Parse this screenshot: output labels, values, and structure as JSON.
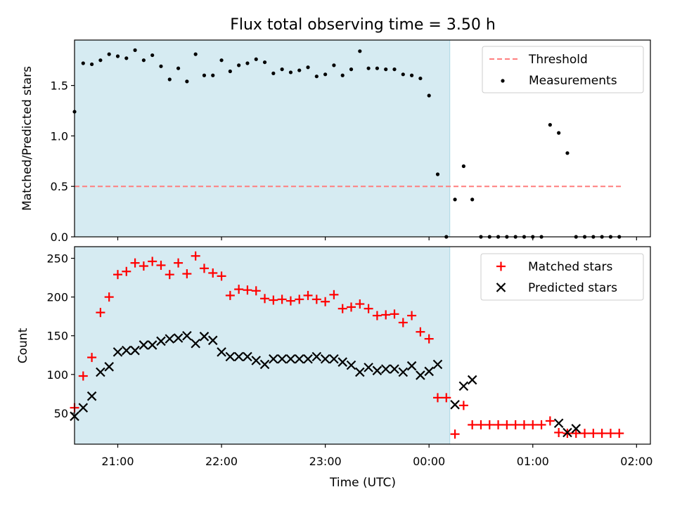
{
  "title": "Flux total observing time = 3.50 h",
  "colors": {
    "shade": "#add8e6",
    "threshold": "#ff7f7f",
    "measurement": "#000000",
    "matched": "#ff0000",
    "predicted": "#000000"
  },
  "chart_data": [
    {
      "type": "scatter",
      "ylabel": "Matched/Predicted stars",
      "xlim": [
        "20:35",
        "02:08"
      ],
      "ylim": [
        0,
        1.95
      ],
      "yticks": [
        0.0,
        0.5,
        1.0,
        1.5
      ],
      "ytick_labels": [
        "0.0",
        "0.5",
        "1.0",
        "1.5"
      ],
      "shaded_span": [
        "20:35",
        "00:12"
      ],
      "threshold": {
        "y": 0.5,
        "x": [
          "20:35",
          "01:52"
        ]
      },
      "legend": {
        "position": "top-right",
        "entries": [
          "Threshold",
          "Measurements"
        ]
      },
      "series": [
        {
          "name": "Measurements",
          "x": [
            "20:35",
            "20:40",
            "20:45",
            "20:50",
            "20:55",
            "21:00",
            "21:05",
            "21:10",
            "21:15",
            "21:20",
            "21:25",
            "21:30",
            "21:35",
            "21:40",
            "21:45",
            "21:50",
            "21:55",
            "22:00",
            "22:05",
            "22:10",
            "22:15",
            "22:20",
            "22:25",
            "22:30",
            "22:35",
            "22:40",
            "22:45",
            "22:50",
            "22:55",
            "23:00",
            "23:05",
            "23:10",
            "23:15",
            "23:20",
            "23:25",
            "23:30",
            "23:35",
            "23:40",
            "23:45",
            "23:50",
            "23:55",
            "00:00",
            "00:05",
            "00:10",
            "00:15",
            "00:20",
            "00:25",
            "00:30",
            "00:35",
            "00:40",
            "00:45",
            "00:50",
            "00:55",
            "01:00",
            "01:05",
            "01:10",
            "01:15",
            "01:20",
            "01:25",
            "01:30",
            "01:35",
            "01:40",
            "01:45",
            "01:50"
          ],
          "y": [
            1.24,
            1.72,
            1.71,
            1.75,
            1.81,
            1.79,
            1.77,
            1.85,
            1.75,
            1.8,
            1.69,
            1.56,
            1.67,
            1.54,
            1.81,
            1.6,
            1.6,
            1.75,
            1.64,
            1.7,
            1.72,
            1.76,
            1.73,
            1.62,
            1.66,
            1.63,
            1.65,
            1.68,
            1.59,
            1.61,
            1.7,
            1.6,
            1.66,
            1.84,
            1.67,
            1.67,
            1.66,
            1.66,
            1.61,
            1.6,
            1.57,
            1.4,
            0.62,
            0.0,
            0.37,
            0.7,
            0.37,
            0.0,
            0.0,
            0.0,
            0.0,
            0.0,
            0.0,
            0.0,
            0.0,
            1.11,
            1.03,
            0.83,
            0.0,
            0.0,
            0.0,
            0.0,
            0.0,
            0.0
          ]
        }
      ]
    },
    {
      "type": "scatter",
      "ylabel": "Count",
      "xlabel": "Time (UTC)",
      "xlim": [
        "20:35",
        "02:08"
      ],
      "ylim": [
        10,
        265
      ],
      "yticks": [
        50,
        100,
        150,
        200,
        250
      ],
      "ytick_labels": [
        "50",
        "100",
        "150",
        "200",
        "250"
      ],
      "xticks": [
        "21:00",
        "22:00",
        "23:00",
        "00:00",
        "01:00",
        "02:00"
      ],
      "shaded_span": [
        "20:35",
        "00:12"
      ],
      "legend": {
        "position": "top-right",
        "entries": [
          "Matched stars",
          "Predicted stars"
        ]
      },
      "series": [
        {
          "name": "Matched stars",
          "marker": "plus",
          "x": [
            "20:35",
            "20:40",
            "20:45",
            "20:50",
            "20:55",
            "21:00",
            "21:05",
            "21:10",
            "21:15",
            "21:20",
            "21:25",
            "21:30",
            "21:35",
            "21:40",
            "21:45",
            "21:50",
            "21:55",
            "22:00",
            "22:05",
            "22:10",
            "22:15",
            "22:20",
            "22:25",
            "22:30",
            "22:35",
            "22:40",
            "22:45",
            "22:50",
            "22:55",
            "23:00",
            "23:05",
            "23:10",
            "23:15",
            "23:20",
            "23:25",
            "23:30",
            "23:35",
            "23:40",
            "23:45",
            "23:50",
            "23:55",
            "00:00",
            "00:05",
            "00:10",
            "00:15",
            "00:20",
            "00:25",
            "00:30",
            "00:35",
            "00:40",
            "00:45",
            "00:50",
            "00:55",
            "01:00",
            "01:05",
            "01:10",
            "01:15",
            "01:20",
            "01:25",
            "01:30",
            "01:35",
            "01:40",
            "01:45",
            "01:50"
          ],
          "y": [
            57,
            98,
            122,
            180,
            200,
            229,
            233,
            244,
            240,
            246,
            241,
            229,
            244,
            230,
            253,
            237,
            231,
            227,
            202,
            210,
            209,
            208,
            198,
            196,
            197,
            195,
            197,
            202,
            197,
            194,
            203,
            185,
            187,
            191,
            185,
            176,
            177,
            178,
            167,
            176,
            155,
            146,
            70,
            70,
            23,
            60,
            35,
            35,
            35,
            35,
            35,
            35,
            35,
            35,
            35,
            40,
            25,
            24,
            24,
            24,
            24,
            24,
            24,
            24
          ]
        },
        {
          "name": "Predicted stars",
          "marker": "x",
          "x": [
            "20:35",
            "20:40",
            "20:45",
            "20:50",
            "20:55",
            "21:00",
            "21:05",
            "21:10",
            "21:15",
            "21:20",
            "21:25",
            "21:30",
            "21:35",
            "21:40",
            "21:45",
            "21:50",
            "21:55",
            "22:00",
            "22:05",
            "22:10",
            "22:15",
            "22:20",
            "22:25",
            "22:30",
            "22:35",
            "22:40",
            "22:45",
            "22:50",
            "22:55",
            "23:00",
            "23:05",
            "23:10",
            "23:15",
            "23:20",
            "23:25",
            "23:30",
            "23:35",
            "23:40",
            "23:45",
            "23:50",
            "23:55",
            "00:00",
            "00:05",
            "00:10",
            "00:15",
            "00:20",
            "00:25",
            "01:15",
            "01:20",
            "01:25"
          ],
          "y": [
            46,
            57,
            72,
            103,
            110,
            129,
            131,
            131,
            138,
            138,
            143,
            146,
            147,
            150,
            140,
            149,
            144,
            129,
            123,
            123,
            123,
            118,
            113,
            120,
            120,
            120,
            120,
            120,
            123,
            120,
            120,
            116,
            112,
            103,
            109,
            105,
            107,
            107,
            103,
            111,
            99,
            104,
            113,
            null,
            61,
            85,
            93,
            37,
            25,
            30
          ]
        }
      ]
    }
  ]
}
